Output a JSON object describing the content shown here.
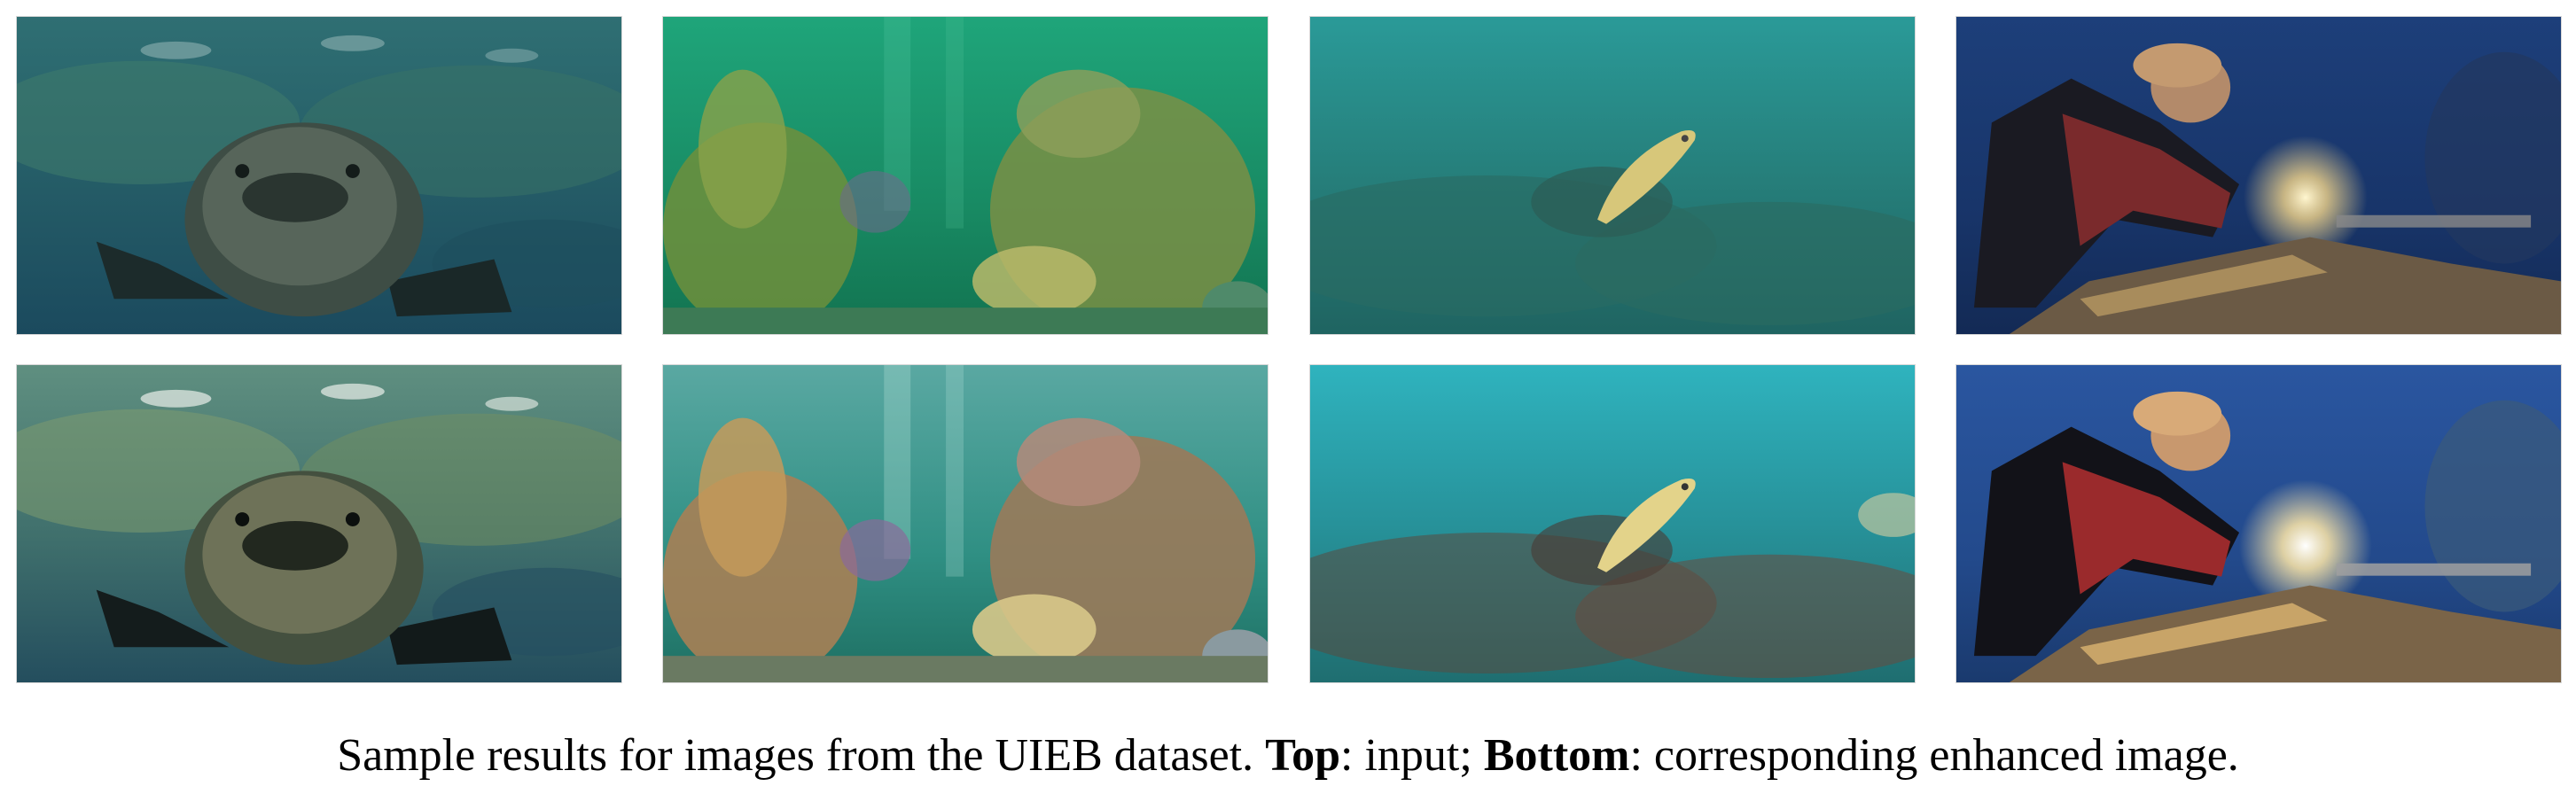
{
  "figure": {
    "caption": {
      "text_1": "Sample results for images from the UIEB dataset. ",
      "bold_top": "Top",
      "text_2": ": input; ",
      "bold_bottom": "Bottom",
      "text_3": ": corresponding enhanced image."
    },
    "rows": [
      {
        "name": "input",
        "images": [
          "grouper-fish",
          "coral-reef",
          "squid-on-seabed",
          "diver-with-light"
        ]
      },
      {
        "name": "enhanced",
        "images": [
          "grouper-fish",
          "coral-reef",
          "squid-on-seabed",
          "diver-with-light"
        ]
      }
    ]
  }
}
